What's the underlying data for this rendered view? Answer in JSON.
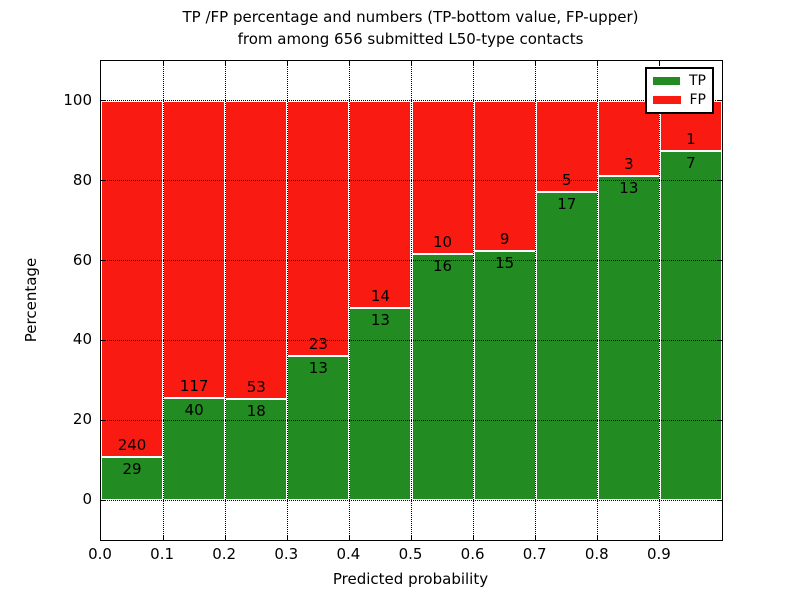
{
  "header": {
    "title_line1": "TP /FP percentage and numbers (TP-bottom value, FP-upper)",
    "title_line2": "from among 656 submitted L50-type contacts"
  },
  "chart_data": {
    "type": "bar",
    "stacked": true,
    "normalization": "each bin scaled so TP+FP = 100%, bar labels show raw counts",
    "title": "TP /FP percentage and numbers (TP-bottom value, FP-upper) from among 656 submitted L50-type contacts",
    "xlabel": "Predicted probability",
    "ylabel": "Percentage",
    "total_contacts": 656,
    "xlim": [
      0.0,
      1.0
    ],
    "ylim": [
      -10,
      110
    ],
    "bin_width": 0.1,
    "bin_starts": [
      0.0,
      0.1,
      0.2,
      0.3,
      0.4,
      0.5,
      0.6,
      0.7,
      0.8,
      0.9
    ],
    "xtick_labels": [
      "0.0",
      "0.1",
      "0.2",
      "0.3",
      "0.4",
      "0.5",
      "0.6",
      "0.7",
      "0.8",
      "0.9"
    ],
    "ytick_values": [
      0,
      20,
      40,
      60,
      80,
      100
    ],
    "ytick_labels": [
      "0",
      "20",
      "40",
      "60",
      "80",
      "100"
    ],
    "series": [
      {
        "name": "TP",
        "color": "#228b22",
        "counts": [
          29,
          40,
          18,
          13,
          13,
          16,
          15,
          17,
          13,
          7
        ]
      },
      {
        "name": "FP",
        "color": "#f91b12",
        "counts": [
          240,
          117,
          53,
          23,
          14,
          10,
          9,
          5,
          3,
          1
        ]
      }
    ],
    "tp_percent_of_bin": [
      10.8,
      25.5,
      25.4,
      36.1,
      48.1,
      61.5,
      62.5,
      77.3,
      81.2,
      87.5
    ],
    "legend": {
      "position": "upper right",
      "entries": [
        "TP",
        "FP"
      ]
    },
    "grid": {
      "style": "dotted",
      "color": "#000000"
    }
  },
  "colors": {
    "tp_green": "#228b22",
    "fp_red": "#f91b12",
    "frame": "#000000",
    "background": "#ffffff"
  }
}
